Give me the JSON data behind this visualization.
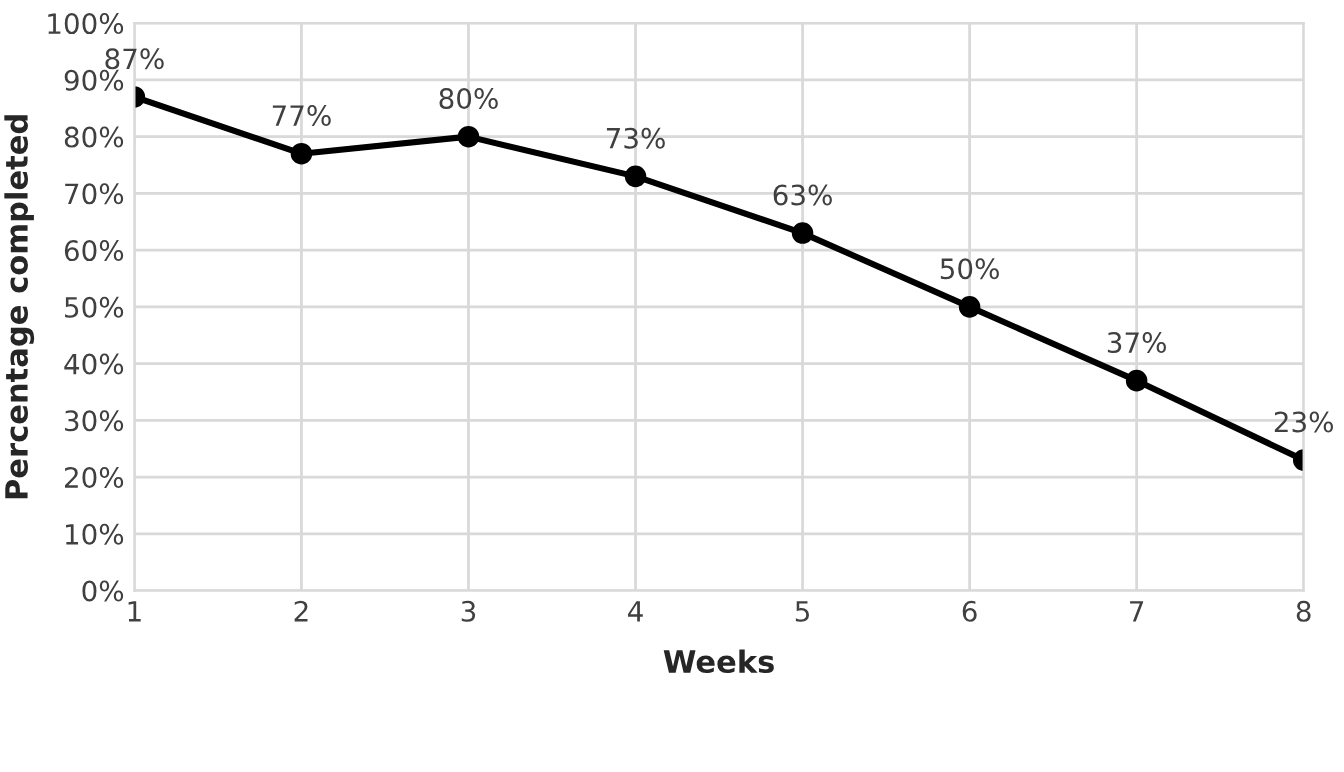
{
  "chart_data": {
    "type": "line",
    "xlabel": "Weeks",
    "ylabel": "Percentage completed",
    "x": [
      1,
      2,
      3,
      4,
      5,
      6,
      7,
      8
    ],
    "series": [
      {
        "color": "#000000",
        "values": [
          87,
          77,
          80,
          73,
          63,
          50,
          37,
          23
        ],
        "value_labels": [
          "87%",
          "77%",
          "80%",
          "73%",
          "63%",
          "50%",
          "37%",
          "23%"
        ]
      }
    ],
    "xlim": [
      1,
      8
    ],
    "xticks": [
      1,
      2,
      3,
      4,
      5,
      6,
      7,
      8
    ],
    "ylim": [
      0,
      100
    ],
    "yticks": [
      {
        "value": 0,
        "label": "0%"
      },
      {
        "value": 10,
        "label": "10%"
      },
      {
        "value": 20,
        "label": "20%"
      },
      {
        "value": 30,
        "label": "30%"
      },
      {
        "value": 40,
        "label": "40%"
      },
      {
        "value": 50,
        "label": "50%"
      },
      {
        "value": 60,
        "label": "60%"
      },
      {
        "value": 70,
        "label": "70%"
      },
      {
        "value": 80,
        "label": "80%"
      },
      {
        "value": 90,
        "label": "90%"
      },
      {
        "value": 100,
        "label": "100%"
      }
    ],
    "grid": true,
    "marker": "circle",
    "line_style": "solid"
  }
}
